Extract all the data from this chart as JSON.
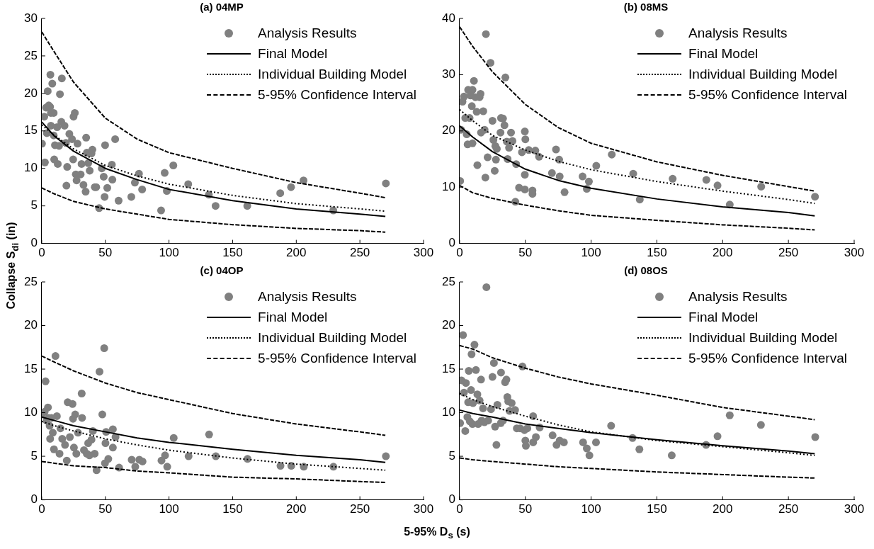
{
  "chart_data": [
    {
      "type": "scatter",
      "title": "(a) 04MP",
      "ylabel": "Collapse S$_{di}$ (in)",
      "xlim": [
        0,
        300
      ],
      "xticks": [
        0,
        50,
        100,
        150,
        200,
        250,
        300
      ],
      "ylim": [
        0,
        30
      ],
      "yticks": [
        0,
        5,
        10,
        15,
        20,
        25,
        30
      ],
      "grid": false,
      "legend": "top right",
      "series": [
        {
          "name": "Analysis Results",
          "type": "scatter",
          "marker": "circle",
          "color": "#808080",
          "x": [
            0.2,
            2.5,
            2,
            3.4,
            4.7,
            4,
            6.8,
            5.5,
            6.6,
            8.3,
            7.2,
            9.4,
            7.2,
            9.4,
            10.4,
            9.8,
            12.6,
            13.6,
            12.1,
            14.3,
            15.8,
            15.4,
            17.9,
            19,
            20,
            19.4,
            21.7,
            23.8,
            24.7,
            25,
            26,
            28.1,
            26.8,
            27.4,
            30.6,
            31.3,
            32.8,
            34.5,
            34.9,
            35.5,
            36.6,
            37.7,
            39.8,
            39.1,
            41.7,
            42.8,
            45.1,
            47.2,
            48.7,
            49.8,
            49.4,
            51.5,
            55.1,
            55.5,
            57.7,
            60.4,
            70.4,
            73.2,
            76.4,
            78.9,
            93.8,
            96.6,
            98.3,
            103.4,
            115.1,
            131.3,
            136.6,
            161.5,
            187.4,
            195.9,
            205.7,
            229.1,
            270.4
          ],
          "values": [
            13.3,
            10.8,
            16.9,
            18.1,
            20.3,
            14.7,
            22.5,
            18.4,
            18.2,
            21.3,
            17.4,
            17.4,
            15.7,
            14.4,
            13.1,
            11.2,
            10.6,
            13,
            15.5,
            19.9,
            22,
            16.2,
            15.7,
            13.4,
            10.2,
            7.7,
            14.6,
            13.9,
            11.2,
            16.9,
            17.4,
            13.3,
            9.2,
            8.4,
            9.2,
            10.6,
            7.8,
            6.9,
            14.1,
            12.1,
            10.7,
            9.7,
            12.5,
            12,
            7.5,
            7.5,
            4.7,
            10,
            8.9,
            13.1,
            6.2,
            7.4,
            10.5,
            8.5,
            13.9,
            5.7,
            6.2,
            8.1,
            9.3,
            7.2,
            4.4,
            9.4,
            7,
            10.4,
            7.9,
            6.5,
            5,
            5,
            6.7,
            7.5,
            8.4,
            4.4,
            8
          ]
        },
        {
          "name": "Final Model",
          "type": "line",
          "marker": "none",
          "line_style": "solid",
          "color": "#000000",
          "x": [
            0,
            10,
            25,
            50,
            75,
            100,
            150,
            200,
            250,
            270
          ],
          "values": [
            16.2,
            14.3,
            12.3,
            10,
            8.5,
            7.2,
            5.7,
            4.6,
            3.9,
            3.6
          ]
        },
        {
          "name": "Individual Building Model",
          "type": "line",
          "marker": "none",
          "line_style": "dotted",
          "color": "#000000",
          "x": [
            0,
            10,
            25,
            50,
            75,
            100,
            150,
            200,
            250,
            270
          ],
          "values": [
            15.8,
            14.4,
            12.6,
            10.4,
            9,
            7.9,
            6.4,
            5.3,
            4.6,
            4.3
          ]
        },
        {
          "name": "5-95% Confidence Interval",
          "type": "line",
          "marker": "none",
          "line_style": "dashed",
          "color": "#000000",
          "x": [
            0,
            10,
            25,
            50,
            75,
            100,
            150,
            200,
            250,
            270
          ],
          "values": [
            28.2,
            25.5,
            21.5,
            16.7,
            13.9,
            12.1,
            10,
            8.1,
            6.7,
            6.1
          ]
        },
        {
          "type": "line",
          "marker": "none",
          "line_style": "dashed",
          "color": "#000000",
          "x": [
            0,
            10,
            25,
            50,
            75,
            100,
            150,
            200,
            250,
            270
          ],
          "values": [
            7.4,
            6.6,
            5.6,
            4.6,
            3.9,
            3.2,
            2.5,
            2,
            1.7,
            1.5
          ]
        }
      ]
    },
    {
      "type": "scatter",
      "title": "(b) 08MS",
      "xlim": [
        0,
        300
      ],
      "xticks": [
        0,
        50,
        100,
        150,
        200,
        250,
        300
      ],
      "ylim": [
        0,
        40
      ],
      "yticks": [
        0,
        10,
        20,
        30,
        40
      ],
      "grid": false,
      "legend": "top right",
      "series": [
        {
          "name": "Analysis Results",
          "type": "scatter",
          "marker": "circle",
          "color": "#808080",
          "x": [
            0.4,
            1.1,
            2.2,
            3.3,
            4.3,
            5.4,
            6.1,
            6.5,
            7.6,
            8.3,
            9.3,
            9.8,
            9.8,
            10.9,
            12,
            13,
            13.5,
            15.2,
            15.9,
            16.3,
            18,
            19,
            19.6,
            20,
            21.3,
            23.5,
            25,
            25.7,
            27.2,
            27.6,
            26.7,
            28.3,
            31.1,
            31.5,
            33,
            34.1,
            34.8,
            35.9,
            36.5,
            37.6,
            39.1,
            40.2,
            43,
            42.4,
            45.2,
            47.4,
            49.6,
            50,
            49.6,
            49.6,
            52.6,
            55.4,
            55.4,
            57.6,
            60.4,
            70.2,
            73.3,
            75.7,
            76.1,
            79.8,
            93.5,
            96.7,
            98.3,
            103.9,
            115.7,
            132,
            137,
            162,
            187.6,
            196.1,
            205.4,
            229.3,
            270.2
          ],
          "values": [
            11.1,
            20.2,
            25.2,
            26.1,
            22.3,
            19.4,
            17.6,
            27.3,
            22.3,
            26.3,
            24.4,
            17.8,
            27.3,
            28.9,
            26,
            23.4,
            13.9,
            26,
            26.6,
            19.7,
            23.5,
            20.2,
            11.7,
            37.2,
            15.3,
            32.1,
            21.8,
            18.4,
            17.3,
            14.9,
            12.9,
            16.8,
            19.7,
            22.3,
            22.2,
            21,
            29.5,
            18.1,
            15,
            17,
            19.7,
            18.2,
            14.1,
            7.4,
            9.9,
            16.2,
            19.9,
            18.5,
            12.2,
            9.6,
            16.6,
            9.4,
            8.8,
            16.5,
            15.4,
            12.5,
            16.7,
            14.9,
            11.9,
            9.1,
            11.9,
            9.7,
            11,
            13.8,
            15.8,
            12.4,
            7.8,
            11.5,
            11.3,
            10.3,
            6.9,
            10.1,
            8.3
          ]
        },
        {
          "name": "Final Model",
          "type": "line",
          "marker": "none",
          "line_style": "solid",
          "color": "#000000",
          "x": [
            0,
            10,
            25,
            50,
            75,
            100,
            150,
            200,
            250,
            270
          ],
          "values": [
            20.9,
            18.9,
            16.3,
            13.2,
            11.2,
            9.8,
            7.9,
            6.5,
            5.5,
            4.9
          ]
        },
        {
          "name": "Individual Building Model",
          "type": "line",
          "marker": "none",
          "line_style": "dotted",
          "color": "#000000",
          "x": [
            0,
            10,
            25,
            50,
            75,
            100,
            150,
            200,
            250,
            270
          ],
          "values": [
            23.8,
            21.8,
            19.2,
            16.6,
            14.6,
            13.1,
            11,
            9.3,
            7.8,
            7.1
          ]
        },
        {
          "name": "5-95% Confidence Interval",
          "type": "line",
          "marker": "none",
          "line_style": "dashed",
          "color": "#000000",
          "x": [
            0,
            10,
            25,
            50,
            75,
            100,
            150,
            200,
            250,
            270
          ],
          "values": [
            38.5,
            35,
            30.5,
            24.7,
            20.6,
            17.8,
            14.5,
            12.1,
            10.1,
            9.3
          ]
        },
        {
          "type": "line",
          "marker": "none",
          "line_style": "dashed",
          "color": "#000000",
          "x": [
            0,
            10,
            25,
            50,
            75,
            100,
            150,
            200,
            250,
            270
          ],
          "values": [
            10.3,
            9,
            8,
            6.8,
            5.8,
            5,
            4.1,
            3.3,
            2.7,
            2.4
          ]
        }
      ]
    },
    {
      "type": "scatter",
      "title": "(c) 04OP",
      "xlabel": "5-95% D$_{s}$ (s)",
      "xlim": [
        0,
        300
      ],
      "xticks": [
        0,
        50,
        100,
        150,
        200,
        250,
        300
      ],
      "ylim": [
        0,
        25
      ],
      "yticks": [
        0,
        5,
        10,
        15,
        20,
        25
      ],
      "grid": false,
      "legend": "top right",
      "series": [
        {
          "name": "Analysis Results",
          "type": "scatter",
          "marker": "circle",
          "color": "#808080",
          "x": [
            0.2,
            3,
            2.3,
            4.9,
            3.8,
            5.5,
            6.2,
            6.6,
            7.6,
            8.7,
            9.6,
            10.8,
            11.9,
            14,
            14.7,
            16.1,
            18.3,
            19.7,
            20.4,
            22.1,
            24.2,
            24.6,
            25.3,
            26.3,
            27.2,
            28.5,
            31.4,
            31.7,
            33.2,
            35.4,
            36.5,
            37.5,
            39.1,
            40.2,
            41.6,
            43.1,
            45.4,
            47.6,
            49.1,
            49.7,
            50.1,
            52.3,
            50.6,
            55.9,
            55.9,
            58,
            60.8,
            70.7,
            73.5,
            76.7,
            79.2,
            94.1,
            96.9,
            98.6,
            103.7,
            115.4,
            131.5,
            136.8,
            161.7,
            187.6,
            196.1,
            205.9,
            229.2,
            270.4
          ],
          "values": [
            9.8,
            13.6,
            10.1,
            10.6,
            9.1,
            9.4,
            8.5,
            7,
            9.4,
            7.7,
            5.8,
            16.5,
            9.6,
            5.3,
            8.2,
            7,
            6.3,
            4.5,
            11.2,
            7.2,
            11,
            9.3,
            6,
            9.8,
            5.3,
            7.7,
            12.2,
            9.4,
            5.7,
            5.3,
            6.5,
            5.1,
            6.9,
            7.9,
            5.3,
            3.4,
            14.7,
            9.8,
            17.4,
            4.2,
            6.5,
            4.7,
            7.8,
            8.1,
            6,
            7.2,
            3.7,
            4.6,
            3.8,
            4.6,
            4.4,
            4.5,
            5.1,
            3.8,
            7.1,
            5,
            7.5,
            5,
            4.7,
            3.9,
            3.9,
            3.8,
            3.8,
            5
          ]
        },
        {
          "name": "Final Model",
          "type": "line",
          "marker": "none",
          "line_style": "solid",
          "color": "#000000",
          "x": [
            0,
            10,
            25,
            50,
            75,
            100,
            150,
            200,
            250,
            270
          ],
          "values": [
            9.5,
            9.1,
            8.5,
            7.8,
            7.1,
            6.6,
            5.8,
            5.1,
            4.6,
            4.3
          ]
        },
        {
          "name": "Individual Building Model",
          "type": "line",
          "marker": "none",
          "line_style": "dotted",
          "color": "#000000",
          "x": [
            0,
            10,
            25,
            50,
            75,
            100,
            150,
            200,
            250,
            270
          ],
          "values": [
            9,
            8.5,
            7.9,
            7,
            6.3,
            5.7,
            4.8,
            4.1,
            3.6,
            3.4
          ]
        },
        {
          "name": "5-95% Confidence Interval",
          "type": "line",
          "marker": "none",
          "line_style": "dashed",
          "color": "#000000",
          "x": [
            0,
            10,
            25,
            50,
            75,
            100,
            150,
            200,
            250,
            270
          ],
          "values": [
            16.5,
            15.8,
            14.8,
            13.4,
            12.3,
            11.5,
            9.9,
            8.7,
            7.8,
            7.4
          ]
        },
        {
          "type": "line",
          "marker": "none",
          "line_style": "dashed",
          "color": "#000000",
          "x": [
            0,
            10,
            25,
            50,
            75,
            100,
            150,
            200,
            250,
            270
          ],
          "values": [
            4.4,
            4.2,
            3.9,
            3.7,
            3.3,
            3.1,
            2.6,
            2.4,
            2.1,
            2
          ]
        }
      ]
    },
    {
      "type": "scatter",
      "title": "(d) 08OS",
      "xlim": [
        0,
        300
      ],
      "xticks": [
        0,
        50,
        100,
        150,
        200,
        250,
        300
      ],
      "ylim": [
        0,
        25
      ],
      "yticks": [
        0,
        5,
        10,
        15,
        20,
        25
      ],
      "grid": false,
      "legend": "top right",
      "series": [
        {
          "name": "Analysis Results",
          "type": "scatter",
          "marker": "circle",
          "color": "#808080",
          "x": [
            0.4,
            1.5,
            2.6,
            3.3,
            4.3,
            4.8,
            5.9,
            6.5,
            7,
            7.8,
            8.7,
            9.1,
            9.8,
            10.2,
            11.3,
            12.4,
            13.5,
            14.1,
            15.2,
            16.3,
            16.7,
            17.8,
            18.9,
            20.4,
            21.7,
            23.9,
            25,
            26.1,
            27,
            28,
            28.7,
            31.3,
            31.5,
            33,
            34.6,
            35.6,
            36.3,
            37,
            39.6,
            38,
            42.2,
            43.5,
            46,
            47.8,
            49.3,
            50,
            50.4,
            51.5,
            55.9,
            55.9,
            58,
            60.9,
            70.7,
            73.7,
            76.1,
            79.3,
            93.9,
            96.7,
            98.7,
            103.7,
            115.2,
            131.5,
            136.7,
            161.3,
            187.4,
            196.1,
            205.4,
            229.1,
            270.4
          ],
          "values": [
            8.8,
            13.7,
            18.9,
            12.3,
            7.9,
            13.4,
            9.5,
            11.2,
            14.8,
            9,
            12.6,
            16.7,
            8.7,
            11.1,
            17.8,
            14.9,
            12.1,
            8.7,
            11.4,
            13.8,
            9.1,
            10.5,
            8.9,
            24.4,
            9.1,
            10.4,
            14.1,
            15.7,
            8.4,
            6.3,
            10.9,
            8.8,
            14.6,
            9.1,
            13.5,
            13.8,
            11.8,
            11.3,
            11.1,
            10.2,
            10.3,
            8.2,
            8.2,
            15.3,
            8,
            6.8,
            6.2,
            8.2,
            9.6,
            6.6,
            7.2,
            8.3,
            7.4,
            6.3,
            6.8,
            6.6,
            6.6,
            5.9,
            5.1,
            6.6,
            8.5,
            7.1,
            5.8,
            5.1,
            6.3,
            7.3,
            9.7,
            8.6,
            7.2
          ]
        },
        {
          "name": "Final Model",
          "type": "line",
          "marker": "none",
          "line_style": "solid",
          "color": "#000000",
          "x": [
            0,
            10,
            25,
            50,
            75,
            100,
            150,
            200,
            250,
            270
          ],
          "values": [
            10.3,
            9.9,
            9.5,
            8.7,
            8.2,
            7.7,
            6.9,
            6.2,
            5.6,
            5.3
          ]
        },
        {
          "name": "Individual Building Model",
          "type": "line",
          "marker": "none",
          "line_style": "dotted",
          "color": "#000000",
          "x": [
            0,
            10,
            25,
            50,
            75,
            100,
            150,
            200,
            250,
            270
          ],
          "values": [
            12.2,
            11.5,
            10.7,
            9.6,
            8.6,
            7.8,
            6.8,
            6.1,
            5.4,
            5.1
          ]
        },
        {
          "name": "5-95% Confidence Interval",
          "type": "line",
          "marker": "none",
          "line_style": "dashed",
          "color": "#000000",
          "x": [
            0,
            10,
            25,
            50,
            75,
            100,
            150,
            200,
            250,
            270
          ],
          "values": [
            17.7,
            17.3,
            16.3,
            15.1,
            14.1,
            13.3,
            12,
            10.6,
            9.6,
            9.2
          ]
        },
        {
          "type": "line",
          "marker": "none",
          "line_style": "dashed",
          "color": "#000000",
          "x": [
            0,
            10,
            25,
            50,
            75,
            100,
            150,
            200,
            250,
            270
          ],
          "values": [
            4.8,
            4.6,
            4.4,
            4.1,
            3.8,
            3.6,
            3.2,
            2.9,
            2.6,
            2.5
          ]
        }
      ]
    }
  ]
}
